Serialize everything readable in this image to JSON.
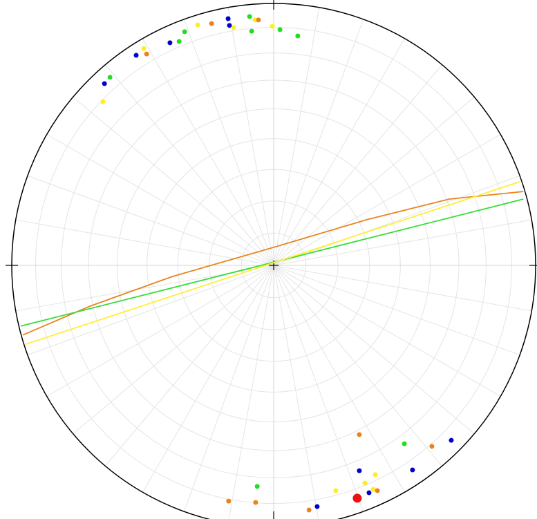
{
  "chart_data": {
    "type": "stereonet",
    "xlim": [
      -1,
      1
    ],
    "ylim": [
      -1,
      1
    ],
    "grid": true,
    "series": [
      {
        "color": "#0000cc",
        "marker_size": 3.5,
        "x": [
          -0.174,
          -0.169,
          -0.396,
          -0.525,
          -0.646,
          0.327,
          0.53,
          0.678,
          0.166,
          0.364
        ],
        "y": [
          0.942,
          0.916,
          0.85,
          0.802,
          0.694,
          -0.784,
          -0.781,
          -0.668,
          -0.921,
          -0.868
        ]
      },
      {
        "color": "#22dd22",
        "marker_size": 3.5,
        "x": [
          -0.092,
          -0.084,
          0.024,
          0.092,
          -0.34,
          -0.361,
          -0.625,
          -0.063,
          0.499
        ],
        "y": [
          0.95,
          0.894,
          0.9,
          0.876,
          0.892,
          0.855,
          0.718,
          -0.844,
          -0.681
        ]
      },
      {
        "color": "#ffee22",
        "marker_size": 3.5,
        "x": [
          -0.29,
          -0.153,
          -0.071,
          -0.005,
          -0.496,
          -0.652,
          0.388,
          0.348,
          0.237,
          0.38
        ],
        "y": [
          0.918,
          0.908,
          0.937,
          0.913,
          0.828,
          0.625,
          -0.799,
          -0.831,
          -0.86,
          -0.855
        ]
      },
      {
        "color": "#e8841e",
        "marker_size": 3.5,
        "x": [
          -0.237,
          -0.058,
          -0.485,
          0.327,
          0.604,
          -0.172,
          -0.069,
          0.135,
          0.396
        ],
        "y": [
          0.923,
          0.937,
          0.807,
          -0.646,
          -0.691,
          -0.9,
          -0.905,
          -0.934,
          -0.86
        ]
      },
      {
        "color": "#ee1111",
        "marker_size": 6.5,
        "x": [
          0.319
        ],
        "y": [
          -0.889
        ]
      }
    ],
    "lines": [
      {
        "color": "#e8841e",
        "x": [
          -0.958,
          -0.702,
          -0.385,
          0,
          0.354,
          0.67,
          0.953
        ],
        "y": [
          -0.266,
          -0.156,
          -0.042,
          0.069,
          0.174,
          0.253,
          0.282
        ]
      },
      {
        "color": "#33dd33",
        "x": [
          -0.966,
          0.953
        ],
        "y": [
          -0.232,
          0.253
        ]
      },
      {
        "color": "#ffee33",
        "x": [
          -0.947,
          0.939
        ],
        "y": [
          -0.301,
          0.319
        ]
      }
    ]
  }
}
